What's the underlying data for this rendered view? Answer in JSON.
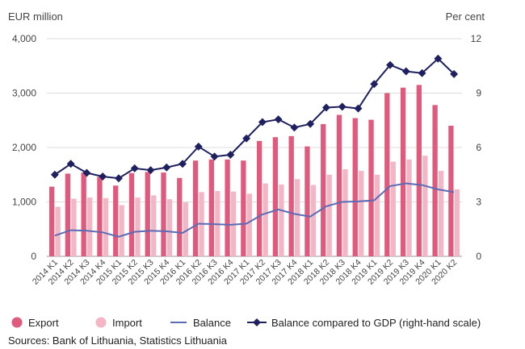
{
  "chart_data": {
    "type": "bar",
    "left_axis_title": "EUR million",
    "right_axis_title": "Per cent",
    "left_ticks": [
      "0",
      "1,000",
      "2,000",
      "3,000",
      "4,000"
    ],
    "right_ticks": [
      "0",
      "3",
      "6",
      "9",
      "12"
    ],
    "ylim_left": [
      0,
      4000
    ],
    "ylim_right": [
      0,
      12
    ],
    "categories": [
      "2014 K1",
      "2014 K2",
      "2014 K3",
      "2014 K4",
      "2015 K1",
      "2015 K2",
      "2015 K3",
      "2015 K4",
      "2016 K1",
      "2016 K2",
      "2016 K3",
      "2016 K4",
      "2017 K1",
      "2017 K2",
      "2017 K3",
      "2017 K4",
      "2018 K1",
      "2018 K2",
      "2018 K3",
      "2018 K4",
      "2019 K1",
      "2019 K2",
      "2019 K3",
      "2019 K4",
      "2020 K1",
      "2020 K2"
    ],
    "series": [
      {
        "name": "Export",
        "kind": "bar",
        "axis": "left",
        "color": "#e05a7e",
        "values": [
          1280,
          1520,
          1540,
          1460,
          1300,
          1530,
          1550,
          1540,
          1440,
          1760,
          1780,
          1780,
          1760,
          2120,
          2190,
          2210,
          2020,
          2430,
          2600,
          2540,
          2510,
          3000,
          3100,
          3150,
          2780,
          2400
        ]
      },
      {
        "name": "Import",
        "kind": "bar",
        "axis": "left",
        "color": "#f4b6c4",
        "values": [
          910,
          1060,
          1080,
          1070,
          940,
          1080,
          1120,
          1050,
          990,
          1180,
          1200,
          1190,
          1150,
          1340,
          1320,
          1420,
          1310,
          1500,
          1600,
          1570,
          1500,
          1740,
          1780,
          1850,
          1570,
          1230
        ]
      },
      {
        "name": "Balance",
        "kind": "line",
        "axis": "left",
        "color": "#5b6bb5",
        "values": [
          380,
          480,
          470,
          440,
          360,
          450,
          470,
          460,
          430,
          600,
          590,
          580,
          600,
          770,
          860,
          780,
          730,
          920,
          1000,
          1010,
          1030,
          1290,
          1340,
          1310,
          1230,
          1180
        ]
      },
      {
        "name": "Balance compared to GDP (right-hand scale)",
        "kind": "line-marker",
        "axis": "right",
        "color": "#1f2060",
        "values": [
          4.5,
          5.1,
          4.6,
          4.4,
          4.3,
          4.85,
          4.75,
          4.9,
          5.1,
          6.05,
          5.5,
          5.6,
          6.5,
          7.4,
          7.55,
          7.1,
          7.3,
          8.2,
          8.25,
          8.15,
          9.5,
          10.55,
          10.2,
          10.1,
          10.9,
          10.05
        ]
      }
    ],
    "legend_position": "bottom",
    "grid": "horizontal"
  },
  "source_text": "Sources: Bank of Lithuania, Statistics Lithuania"
}
